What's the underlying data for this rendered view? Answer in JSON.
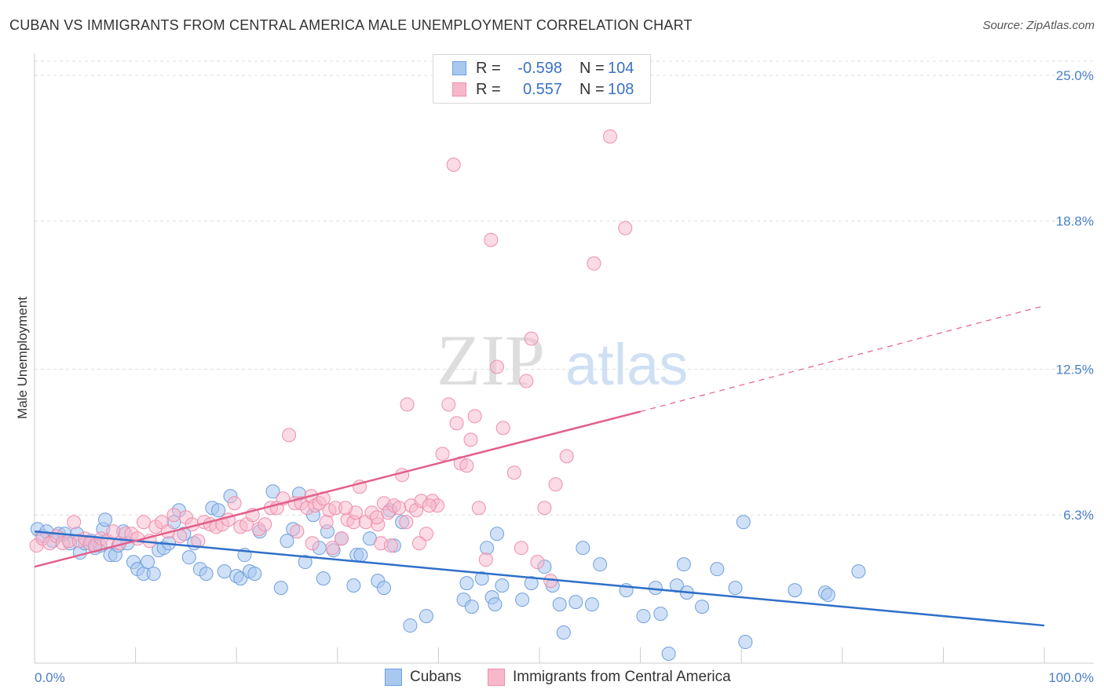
{
  "title": "CUBAN VS IMMIGRANTS FROM CENTRAL AMERICA MALE UNEMPLOYMENT CORRELATION CHART",
  "source": "Source: ZipAtlas.com",
  "watermark": {
    "zip": "ZIP",
    "atlas": "atlas"
  },
  "legend_top": [
    {
      "r_label": "R =",
      "r_value": "-0.598",
      "n_label": "N =",
      "n_value": "104"
    },
    {
      "r_label": "R =",
      "r_value": "0.557",
      "n_label": "N =",
      "n_value": "108"
    }
  ],
  "colors": {
    "blue_fill": "#a9c8f0",
    "blue_stroke": "#6f9fde",
    "blue_line": "#2f6fc9",
    "pink_fill": "#f7b8cb",
    "pink_stroke": "#ee8fac",
    "pink_line": "#e35f8a",
    "grid": "#dddddd",
    "tick_text": "#4a7fc8"
  },
  "chart_data": {
    "type": "scatter",
    "xlabel": "",
    "ylabel": "Male Unemployment",
    "xlim": [
      0,
      100
    ],
    "ylim": [
      0,
      25.6
    ],
    "x_tick_labels": [
      "0.0%",
      "100.0%"
    ],
    "y_ticks": [
      6.3,
      12.5,
      18.8,
      25.0
    ],
    "y_tick_labels": [
      "6.3%",
      "12.5%",
      "18.8%",
      "25.0%"
    ],
    "grid": "horizontal dashed",
    "legend_position": "top-center and bottom",
    "series": [
      {
        "name": "Cubans",
        "r": -0.598,
        "n": 104,
        "trend": {
          "x": [
            0,
            100
          ],
          "y": [
            5.6,
            1.6
          ],
          "style": "solid"
        },
        "points": [
          [
            0.3,
            5.7
          ],
          [
            0.8,
            5.4
          ],
          [
            1.2,
            5.6
          ],
          [
            1.8,
            5.2
          ],
          [
            2.4,
            5.5
          ],
          [
            3.0,
            5.5
          ],
          [
            3.5,
            5.1
          ],
          [
            4.2,
            5.5
          ],
          [
            4.5,
            4.7
          ],
          [
            5.0,
            5.1
          ],
          [
            5.6,
            5.2
          ],
          [
            6.0,
            4.9
          ],
          [
            6.5,
            5.0
          ],
          [
            6.8,
            5.7
          ],
          [
            7.0,
            6.1
          ],
          [
            7.5,
            4.6
          ],
          [
            8.0,
            4.6
          ],
          [
            8.3,
            5.0
          ],
          [
            8.8,
            5.6
          ],
          [
            9.2,
            5.1
          ],
          [
            9.8,
            4.3
          ],
          [
            10.2,
            4.0
          ],
          [
            10.8,
            3.8
          ],
          [
            11.2,
            4.3
          ],
          [
            11.8,
            3.8
          ],
          [
            12.3,
            4.8
          ],
          [
            12.8,
            4.9
          ],
          [
            13.3,
            5.1
          ],
          [
            13.8,
            6.0
          ],
          [
            14.3,
            6.5
          ],
          [
            14.8,
            5.5
          ],
          [
            15.3,
            4.5
          ],
          [
            15.8,
            5.1
          ],
          [
            16.4,
            4.0
          ],
          [
            17.0,
            3.8
          ],
          [
            17.6,
            6.6
          ],
          [
            18.2,
            6.5
          ],
          [
            18.8,
            3.9
          ],
          [
            19.4,
            7.1
          ],
          [
            20.0,
            3.7
          ],
          [
            20.4,
            3.6
          ],
          [
            20.8,
            4.6
          ],
          [
            21.3,
            3.9
          ],
          [
            21.8,
            3.8
          ],
          [
            22.3,
            5.6
          ],
          [
            23.6,
            7.3
          ],
          [
            24.4,
            3.2
          ],
          [
            25.0,
            5.2
          ],
          [
            25.6,
            5.7
          ],
          [
            26.2,
            7.2
          ],
          [
            26.8,
            4.3
          ],
          [
            27.6,
            6.3
          ],
          [
            28.2,
            4.9
          ],
          [
            28.6,
            3.6
          ],
          [
            29.0,
            5.6
          ],
          [
            29.6,
            4.8
          ],
          [
            30.4,
            5.3
          ],
          [
            31.6,
            3.3
          ],
          [
            31.9,
            4.6
          ],
          [
            32.3,
            4.6
          ],
          [
            33.2,
            5.3
          ],
          [
            34.0,
            3.5
          ],
          [
            34.6,
            3.2
          ],
          [
            35.2,
            6.5
          ],
          [
            35.6,
            5.0
          ],
          [
            36.4,
            6.0
          ],
          [
            37.2,
            1.6
          ],
          [
            38.8,
            2.0
          ],
          [
            42.5,
            2.7
          ],
          [
            42.8,
            3.4
          ],
          [
            43.3,
            2.4
          ],
          [
            44.3,
            3.6
          ],
          [
            44.8,
            4.9
          ],
          [
            45.3,
            2.8
          ],
          [
            45.8,
            5.5
          ],
          [
            45.6,
            2.5
          ],
          [
            46.3,
            3.3
          ],
          [
            48.3,
            2.7
          ],
          [
            49.2,
            3.4
          ],
          [
            50.5,
            4.1
          ],
          [
            51.3,
            3.3
          ],
          [
            52.0,
            2.5
          ],
          [
            52.4,
            1.3
          ],
          [
            53.6,
            2.6
          ],
          [
            54.3,
            4.9
          ],
          [
            55.2,
            2.5
          ],
          [
            56.0,
            4.2
          ],
          [
            58.6,
            3.1
          ],
          [
            60.3,
            2.0
          ],
          [
            61.5,
            3.2
          ],
          [
            62.0,
            2.1
          ],
          [
            62.8,
            0.4
          ],
          [
            63.6,
            3.3
          ],
          [
            64.3,
            4.2
          ],
          [
            64.6,
            3.0
          ],
          [
            66.1,
            2.4
          ],
          [
            67.6,
            4.0
          ],
          [
            69.4,
            3.2
          ],
          [
            70.2,
            6.0
          ],
          [
            70.4,
            0.9
          ],
          [
            75.3,
            3.1
          ],
          [
            78.3,
            3.0
          ],
          [
            78.6,
            2.9
          ],
          [
            81.6,
            3.9
          ]
        ]
      },
      {
        "name": "Immigrants from Central America",
        "r": 0.557,
        "n": 108,
        "trend": {
          "x": [
            0,
            60
          ],
          "y": [
            4.1,
            10.7
          ],
          "style": "solid",
          "ext_x": [
            60,
            100
          ],
          "ext_y": [
            10.7,
            15.2
          ],
          "ext_style": "dashed"
        },
        "points": [
          [
            0.2,
            5.0
          ],
          [
            0.8,
            5.3
          ],
          [
            1.5,
            5.1
          ],
          [
            2.2,
            5.4
          ],
          [
            2.8,
            5.1
          ],
          [
            3.4,
            5.2
          ],
          [
            3.9,
            6.0
          ],
          [
            4.4,
            5.2
          ],
          [
            5.0,
            5.3
          ],
          [
            5.5,
            5.1
          ],
          [
            6.0,
            5.0
          ],
          [
            6.6,
            5.3
          ],
          [
            7.2,
            5.2
          ],
          [
            7.8,
            5.6
          ],
          [
            8.4,
            5.1
          ],
          [
            9.0,
            5.5
          ],
          [
            9.6,
            5.5
          ],
          [
            10.2,
            5.3
          ],
          [
            10.8,
            6.0
          ],
          [
            11.4,
            5.2
          ],
          [
            12.0,
            5.8
          ],
          [
            12.6,
            6.0
          ],
          [
            13.2,
            5.6
          ],
          [
            13.8,
            6.3
          ],
          [
            14.4,
            5.4
          ],
          [
            15.0,
            6.2
          ],
          [
            15.6,
            5.9
          ],
          [
            16.2,
            5.2
          ],
          [
            16.8,
            6.0
          ],
          [
            17.4,
            5.9
          ],
          [
            18.0,
            5.8
          ],
          [
            18.6,
            5.9
          ],
          [
            19.2,
            6.1
          ],
          [
            19.8,
            6.8
          ],
          [
            20.4,
            5.8
          ],
          [
            21.0,
            5.9
          ],
          [
            21.6,
            6.3
          ],
          [
            22.2,
            5.7
          ],
          [
            22.8,
            5.9
          ],
          [
            23.4,
            6.6
          ],
          [
            24.0,
            6.6
          ],
          [
            24.6,
            7.0
          ],
          [
            25.2,
            9.7
          ],
          [
            25.8,
            6.8
          ],
          [
            26.4,
            6.8
          ],
          [
            27.0,
            6.6
          ],
          [
            27.4,
            7.1
          ],
          [
            27.8,
            6.7
          ],
          [
            28.2,
            6.8
          ],
          [
            28.6,
            7.0
          ],
          [
            29.2,
            6.5
          ],
          [
            29.8,
            6.6
          ],
          [
            30.4,
            5.3
          ],
          [
            31.0,
            6.1
          ],
          [
            31.6,
            6.0
          ],
          [
            32.2,
            7.5
          ],
          [
            32.8,
            6.0
          ],
          [
            33.4,
            6.4
          ],
          [
            34.0,
            5.9
          ],
          [
            34.6,
            6.8
          ],
          [
            35.0,
            6.4
          ],
          [
            35.6,
            6.7
          ],
          [
            36.1,
            6.6
          ],
          [
            36.4,
            8.0
          ],
          [
            36.8,
            6.0
          ],
          [
            37.3,
            6.7
          ],
          [
            37.8,
            6.5
          ],
          [
            38.3,
            6.9
          ],
          [
            38.8,
            5.5
          ],
          [
            39.4,
            6.9
          ],
          [
            39.9,
            6.7
          ],
          [
            40.4,
            8.9
          ],
          [
            41.0,
            11.0
          ],
          [
            41.5,
            21.2
          ],
          [
            41.8,
            10.2
          ],
          [
            42.2,
            8.5
          ],
          [
            42.8,
            8.4
          ],
          [
            43.2,
            9.5
          ],
          [
            43.6,
            10.5
          ],
          [
            44.0,
            6.6
          ],
          [
            44.7,
            4.4
          ],
          [
            45.2,
            18.0
          ],
          [
            45.8,
            12.6
          ],
          [
            46.4,
            10.0
          ],
          [
            47.5,
            8.1
          ],
          [
            48.2,
            4.9
          ],
          [
            48.7,
            12.0
          ],
          [
            49.2,
            13.8
          ],
          [
            49.8,
            4.3
          ],
          [
            50.5,
            6.6
          ],
          [
            51.1,
            3.5
          ],
          [
            51.6,
            7.6
          ],
          [
            52.7,
            8.8
          ],
          [
            55.4,
            17.0
          ],
          [
            57.0,
            22.4
          ],
          [
            58.5,
            18.5
          ],
          [
            27.5,
            5.1
          ],
          [
            34.3,
            5.1
          ],
          [
            26.0,
            5.6
          ],
          [
            29.5,
            4.9
          ],
          [
            31.8,
            6.4
          ],
          [
            33.9,
            6.2
          ],
          [
            36.9,
            11.0
          ],
          [
            38.1,
            5.1
          ],
          [
            39.1,
            6.7
          ],
          [
            35.3,
            5.0
          ],
          [
            30.8,
            6.6
          ],
          [
            28.9,
            6.0
          ]
        ]
      }
    ]
  }
}
